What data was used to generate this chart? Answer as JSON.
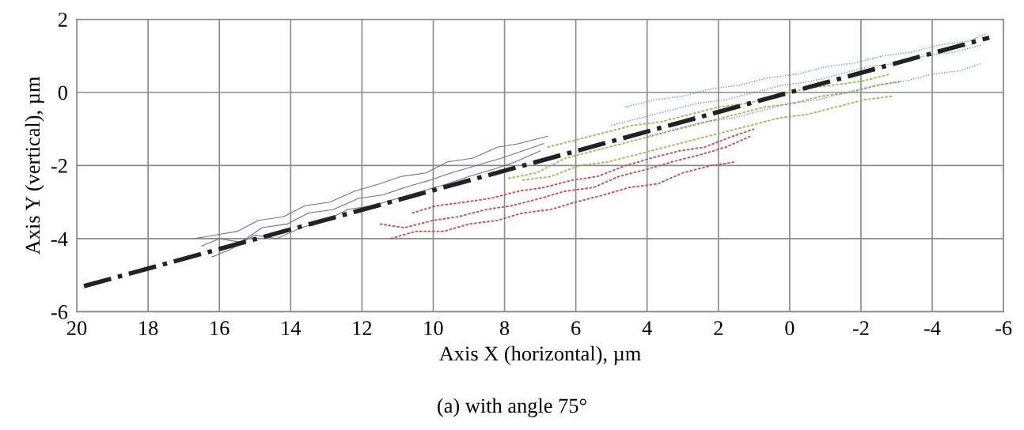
{
  "chart_data": {
    "type": "line",
    "xlabel": "Axis X (horizontal), µm",
    "ylabel": "Axis Y (vertical), µm",
    "xlim": [
      20,
      -6
    ],
    "xticks": [
      20,
      18,
      16,
      14,
      12,
      10,
      8,
      6,
      4,
      2,
      0,
      -2,
      -4,
      -6
    ],
    "ylim": [
      -6,
      2
    ],
    "yticks": [
      -6,
      -4,
      -2,
      0,
      2
    ],
    "grid": true,
    "legend": false,
    "marker": "none",
    "annotations": [
      "(a) with angle 75°"
    ],
    "series": [
      {
        "color": "#8064a2",
        "line_style": "solid",
        "x": [
          16.5,
          16.0,
          15.4,
          14.8,
          14.1,
          13.5,
          12.8,
          12.1,
          11.4,
          10.8,
          10.1,
          9.5,
          8.8,
          8.1,
          7.5,
          6.9
        ],
        "values": [
          -4.2,
          -4.0,
          -4.1,
          -3.7,
          -3.6,
          -3.3,
          -3.2,
          -2.9,
          -2.8,
          -2.6,
          -2.4,
          -2.2,
          -2.0,
          -1.8,
          -1.6,
          -1.4
        ]
      },
      {
        "color": "#8064a2",
        "line_style": "solid",
        "x": [
          16.2,
          15.7,
          15.0,
          14.4,
          13.7,
          13.0,
          12.4,
          11.7,
          11.0,
          10.3,
          9.6,
          9.0,
          8.3,
          7.7,
          7.0
        ],
        "values": [
          -4.5,
          -4.3,
          -3.9,
          -4.0,
          -3.7,
          -3.5,
          -3.2,
          -3.1,
          -2.9,
          -2.7,
          -2.5,
          -2.3,
          -2.1,
          -1.9,
          -1.6
        ]
      },
      {
        "color": "#8064a2",
        "line_style": "solid",
        "x": [
          16.7,
          16.1,
          15.5,
          14.9,
          14.2,
          13.6,
          12.9,
          12.2,
          11.5,
          10.9,
          10.2,
          9.6,
          8.9,
          8.2,
          7.6,
          6.8
        ],
        "values": [
          -4.0,
          -3.9,
          -3.8,
          -3.5,
          -3.4,
          -3.1,
          -3.0,
          -2.7,
          -2.5,
          -2.3,
          -2.2,
          -1.9,
          -1.8,
          -1.5,
          -1.4,
          -1.2
        ]
      },
      {
        "color": "#c0504d",
        "line_style": "dashed",
        "x": [
          11.5,
          10.8,
          10.0,
          9.3,
          8.5,
          7.8,
          7.0,
          6.3,
          5.5,
          4.8,
          4.0,
          3.3,
          2.5,
          1.8,
          1.1
        ],
        "values": [
          -3.6,
          -3.7,
          -3.5,
          -3.4,
          -3.2,
          -3.1,
          -2.9,
          -2.7,
          -2.6,
          -2.3,
          -2.1,
          -1.9,
          -1.7,
          -1.5,
          -1.2
        ]
      },
      {
        "color": "#c0504d",
        "line_style": "dashed",
        "x": [
          11.2,
          10.5,
          9.7,
          9.0,
          8.2,
          7.5,
          6.7,
          6.0,
          5.2,
          4.5,
          3.7,
          3.0,
          2.2,
          1.5
        ],
        "values": [
          -4.0,
          -3.8,
          -3.8,
          -3.6,
          -3.5,
          -3.3,
          -3.2,
          -3.0,
          -2.8,
          -2.6,
          -2.5,
          -2.2,
          -2.0,
          -1.9
        ]
      },
      {
        "color": "#c0504d",
        "line_style": "dashed",
        "x": [
          10.6,
          9.9,
          9.1,
          8.4,
          7.6,
          6.9,
          6.1,
          5.4,
          4.6,
          3.9,
          3.1,
          2.4,
          1.6,
          1.0
        ],
        "values": [
          -3.3,
          -3.1,
          -3.0,
          -2.9,
          -2.7,
          -2.6,
          -2.4,
          -2.3,
          -2.0,
          -1.8,
          -1.6,
          -1.5,
          -1.2,
          -1.0
        ]
      },
      {
        "color": "#9bbb59",
        "line_style": "dashed",
        "x": [
          7.9,
          7.1,
          6.3,
          5.5,
          4.7,
          3.9,
          3.1,
          2.3,
          1.5,
          0.7,
          -0.1,
          -0.9,
          -1.7,
          -2.5,
          -3.1
        ],
        "values": [
          -2.35,
          -2.2,
          -1.8,
          -1.6,
          -1.4,
          -1.2,
          -1.0,
          -0.8,
          -0.6,
          -0.4,
          -0.3,
          -0.1,
          0.0,
          0.2,
          0.3
        ]
      },
      {
        "color": "#9bbb59",
        "line_style": "dashed",
        "x": [
          7.5,
          6.7,
          5.9,
          5.1,
          4.3,
          3.5,
          2.7,
          1.9,
          1.1,
          0.3,
          -0.5,
          -1.3,
          -2.1,
          -2.9
        ],
        "values": [
          -2.4,
          -2.3,
          -2.0,
          -1.9,
          -1.7,
          -1.5,
          -1.3,
          -1.1,
          -0.9,
          -0.7,
          -0.6,
          -0.4,
          -0.2,
          -0.1
        ]
      },
      {
        "color": "#9bbb59",
        "line_style": "dashed",
        "x": [
          6.8,
          6.0,
          5.2,
          4.4,
          3.6,
          2.8,
          2.0,
          1.2,
          0.4,
          -0.4,
          -1.2,
          -2.0,
          -2.8
        ],
        "values": [
          -1.5,
          -1.3,
          -1.1,
          -0.9,
          -0.8,
          -0.6,
          -0.4,
          -0.3,
          -0.1,
          0.1,
          0.2,
          0.3,
          0.5
        ]
      },
      {
        "color": "#4f81bd",
        "line_style": "dotted",
        "x": [
          5.0,
          4.2,
          3.4,
          2.6,
          1.8,
          1.0,
          0.2,
          -0.6,
          -1.4,
          -2.2,
          -3.0,
          -3.8,
          -4.6,
          -5.4
        ],
        "values": [
          -0.9,
          -0.7,
          -0.5,
          -0.3,
          -0.2,
          0.0,
          0.2,
          0.3,
          0.5,
          0.7,
          0.8,
          1.0,
          1.1,
          1.3
        ]
      },
      {
        "color": "#4f81bd",
        "line_style": "dotted",
        "x": [
          4.6,
          3.8,
          3.0,
          2.2,
          1.4,
          0.6,
          -0.2,
          -1.0,
          -1.8,
          -2.6,
          -3.4,
          -4.2,
          -5.0,
          -5.5
        ],
        "values": [
          -0.4,
          -0.2,
          -0.1,
          0.1,
          0.2,
          0.4,
          0.5,
          0.7,
          0.8,
          1.0,
          1.1,
          1.3,
          1.4,
          1.6
        ]
      },
      {
        "color": "#4f81bd",
        "line_style": "dotted",
        "x": [
          4.0,
          3.2,
          2.4,
          1.6,
          0.8,
          0.0,
          -0.8,
          -1.6,
          -2.4,
          -3.2,
          -4.0,
          -4.8,
          -5.4
        ],
        "values": [
          -1.2,
          -1.0,
          -0.8,
          -0.7,
          -0.5,
          -0.3,
          -0.2,
          0.0,
          0.2,
          0.3,
          0.5,
          0.6,
          0.8
        ]
      },
      {
        "color": "#222222",
        "line_style": "dashdot",
        "x": [
          19.8,
          -5.6
        ],
        "values": [
          -5.3,
          1.5
        ]
      }
    ]
  }
}
